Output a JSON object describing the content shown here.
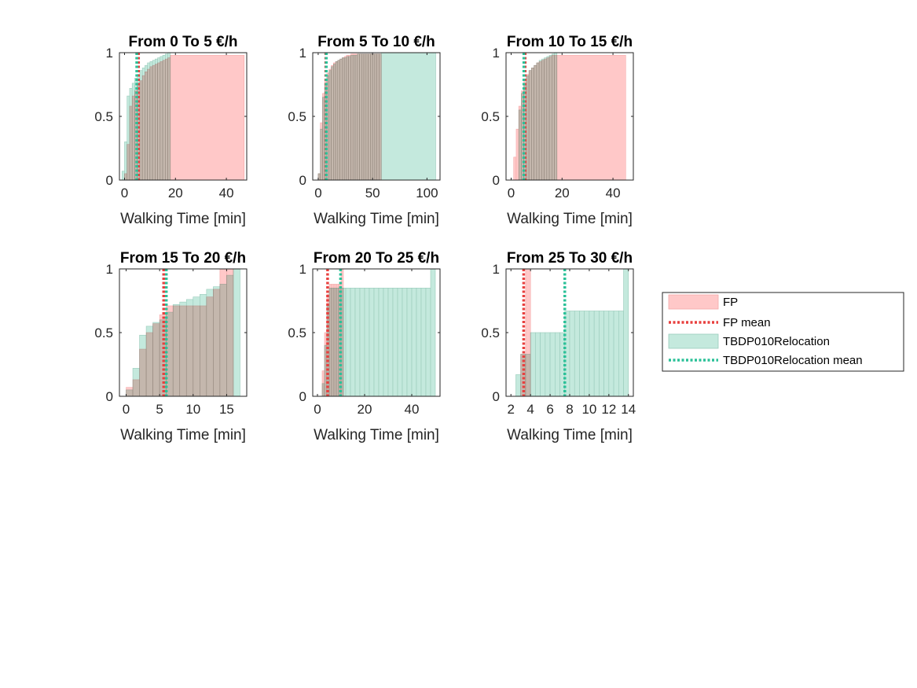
{
  "chart_data": [
    {
      "type": "bar",
      "title": "From 0 To 5 €/h",
      "xlabel": "Walking Time [min]",
      "ylabel": "",
      "xlim": [
        -2,
        48
      ],
      "ylim": [
        0,
        1
      ],
      "xticks": [
        "0",
        "20",
        "40"
      ],
      "xtick_values": [
        0,
        20,
        40
      ],
      "yticks": [
        "0",
        "0.5",
        "1"
      ],
      "ytick_values": [
        0,
        0.5,
        1
      ],
      "series": [
        {
          "name": "FP",
          "bin_edges": [
            0,
            1,
            2,
            3,
            4,
            5,
            6,
            7,
            8,
            9,
            10,
            11,
            12,
            13,
            14,
            15,
            16,
            17,
            18,
            47
          ],
          "values": [
            0.05,
            0.28,
            0.58,
            0.66,
            0.7,
            0.74,
            0.78,
            0.82,
            0.85,
            0.87,
            0.89,
            0.9,
            0.91,
            0.92,
            0.93,
            0.94,
            0.95,
            0.96,
            0.98
          ]
        },
        {
          "name": "TBDP010Relocation",
          "bin_edges": [
            -1,
            0,
            1,
            2,
            3,
            4,
            5,
            6,
            7,
            8,
            9,
            10,
            11,
            12,
            13,
            14,
            15,
            16,
            17,
            18
          ],
          "values": [
            0.07,
            0.3,
            0.66,
            0.72,
            0.76,
            0.8,
            0.83,
            0.86,
            0.88,
            0.9,
            0.92,
            0.93,
            0.94,
            0.95,
            0.96,
            0.97,
            0.98,
            0.99,
            1.0
          ]
        }
      ],
      "means": [
        {
          "name": "FP mean",
          "x": 5.5
        },
        {
          "name": "TBDP010Relocation mean",
          "x": 4.8
        }
      ]
    },
    {
      "type": "bar",
      "title": "From 5 To 10 €/h",
      "xlabel": "Walking Time [min]",
      "ylabel": "",
      "xlim": [
        -5,
        112
      ],
      "ylim": [
        0,
        1
      ],
      "xticks": [
        "0",
        "50",
        "100"
      ],
      "xtick_values": [
        0,
        50,
        100
      ],
      "yticks": [
        "0",
        "0.5",
        "1"
      ],
      "ytick_values": [
        0,
        0.5,
        1
      ],
      "series": [
        {
          "name": "FP",
          "bin_edges": [
            0,
            2,
            4,
            6,
            8,
            10,
            12,
            14,
            16,
            18,
            20,
            22,
            24,
            26,
            28,
            30,
            32,
            34,
            36,
            38,
            40,
            42,
            44,
            46,
            48,
            50,
            52,
            54,
            56,
            58
          ],
          "values": [
            0.05,
            0.45,
            0.68,
            0.78,
            0.84,
            0.87,
            0.9,
            0.92,
            0.93,
            0.94,
            0.95,
            0.96,
            0.97,
            0.98,
            0.98,
            0.99,
            0.99,
            0.99,
            0.99,
            0.99,
            0.99,
            0.99,
            0.99,
            0.99,
            0.99,
            0.99,
            0.99,
            0.99,
            0.99
          ]
        },
        {
          "name": "TBDP010Relocation",
          "bin_edges": [
            0,
            2,
            4,
            6,
            8,
            10,
            12,
            14,
            16,
            18,
            20,
            22,
            24,
            26,
            28,
            30,
            32,
            34,
            36,
            38,
            40,
            42,
            44,
            46,
            48,
            50,
            52,
            54,
            56,
            58,
            108
          ],
          "values": [
            0.05,
            0.4,
            0.65,
            0.76,
            0.82,
            0.86,
            0.89,
            0.91,
            0.93,
            0.94,
            0.95,
            0.96,
            0.96,
            0.97,
            0.97,
            0.98,
            0.98,
            0.98,
            0.99,
            0.99,
            0.99,
            0.99,
            0.99,
            0.99,
            0.99,
            0.99,
            0.99,
            0.99,
            0.99,
            1.0
          ]
        }
      ],
      "means": [
        {
          "name": "FP mean",
          "x": 7
        },
        {
          "name": "TBDP010Relocation mean",
          "x": 7.5
        }
      ]
    },
    {
      "type": "bar",
      "title": "From 10 To 15 €/h",
      "xlabel": "Walking Time [min]",
      "ylabel": "",
      "xlim": [
        -2,
        48
      ],
      "ylim": [
        0,
        1
      ],
      "xticks": [
        "0",
        "20",
        "40"
      ],
      "xtick_values": [
        0,
        20,
        40
      ],
      "yticks": [
        "0",
        "0.5",
        "1"
      ],
      "ytick_values": [
        0,
        0.5,
        1
      ],
      "series": [
        {
          "name": "FP",
          "bin_edges": [
            1,
            2,
            3,
            4,
            5,
            6,
            7,
            8,
            9,
            10,
            11,
            12,
            13,
            14,
            15,
            16,
            17,
            18,
            45
          ],
          "values": [
            0.18,
            0.4,
            0.58,
            0.7,
            0.78,
            0.83,
            0.86,
            0.88,
            0.9,
            0.92,
            0.93,
            0.94,
            0.95,
            0.96,
            0.97,
            0.98,
            0.98,
            0.98
          ]
        },
        {
          "name": "TBDP010Relocation",
          "bin_edges": [
            3,
            4,
            5,
            6,
            7,
            8,
            9,
            10,
            11,
            12,
            13,
            14,
            15,
            16,
            17,
            18
          ],
          "values": [
            0.55,
            0.68,
            0.76,
            0.82,
            0.86,
            0.88,
            0.9,
            0.92,
            0.94,
            0.95,
            0.96,
            0.97,
            0.98,
            0.99,
            1.0
          ]
        }
      ],
      "means": [
        {
          "name": "FP mean",
          "x": 5.5
        },
        {
          "name": "TBDP010Relocation mean",
          "x": 5.0
        }
      ]
    },
    {
      "type": "bar",
      "title": "From 15 To 20 €/h",
      "xlabel": "Walking Time [min]",
      "ylabel": "",
      "xlim": [
        -1,
        18
      ],
      "ylim": [
        0,
        1
      ],
      "xticks": [
        "0",
        "5",
        "10",
        "15"
      ],
      "xtick_values": [
        0,
        5,
        10,
        15
      ],
      "yticks": [
        "0",
        "0.5",
        "1"
      ],
      "ytick_values": [
        0,
        0.5,
        1
      ],
      "series": [
        {
          "name": "FP",
          "bin_edges": [
            0,
            1,
            2,
            3,
            4,
            5,
            6,
            7,
            8,
            9,
            10,
            11,
            12,
            13,
            14,
            15,
            16
          ],
          "values": [
            0.07,
            0.13,
            0.37,
            0.5,
            0.57,
            0.64,
            0.71,
            0.71,
            0.71,
            0.71,
            0.71,
            0.71,
            0.78,
            0.84,
            1.0,
            1.0
          ]
        },
        {
          "name": "TBDP010Relocation",
          "bin_edges": [
            0,
            1,
            2,
            3,
            4,
            5,
            6,
            7,
            8,
            9,
            10,
            11,
            12,
            13,
            14,
            15,
            16,
            17
          ],
          "values": [
            0.05,
            0.22,
            0.48,
            0.55,
            0.58,
            0.6,
            0.66,
            0.72,
            0.74,
            0.76,
            0.78,
            0.8,
            0.84,
            0.86,
            0.88,
            0.95,
            1.0
          ]
        }
      ],
      "means": [
        {
          "name": "FP mean",
          "x": 5.6
        },
        {
          "name": "TBDP010Relocation mean",
          "x": 6.0
        }
      ]
    },
    {
      "type": "bar",
      "title": "From 20 To 25 €/h",
      "xlabel": "Walking Time [min]",
      "ylabel": "",
      "xlim": [
        -2,
        52
      ],
      "ylim": [
        0,
        1
      ],
      "xticks": [
        "0",
        "20",
        "40"
      ],
      "xtick_values": [
        0,
        20,
        40
      ],
      "yticks": [
        "0",
        "0.5",
        "1"
      ],
      "ytick_values": [
        0,
        0.5,
        1
      ],
      "series": [
        {
          "name": "FP",
          "bin_edges": [
            2,
            3,
            4,
            5,
            6,
            7,
            8,
            9,
            10,
            11
          ],
          "values": [
            0.2,
            0.5,
            0.8,
            0.88,
            0.88,
            0.88,
            0.88,
            0.88,
            1.0
          ]
        },
        {
          "name": "TBDP010Relocation",
          "bin_edges": [
            2,
            3,
            4,
            5,
            6,
            7,
            8,
            9,
            10,
            11,
            12,
            14,
            16,
            18,
            20,
            22,
            24,
            26,
            28,
            30,
            32,
            34,
            36,
            38,
            40,
            42,
            44,
            46,
            48,
            50
          ],
          "values": [
            0.1,
            0.4,
            0.72,
            0.85,
            0.85,
            0.85,
            0.85,
            0.85,
            0.85,
            0.85,
            0.85,
            0.85,
            0.85,
            0.85,
            0.85,
            0.85,
            0.85,
            0.85,
            0.85,
            0.85,
            0.85,
            0.85,
            0.85,
            0.85,
            0.85,
            0.85,
            0.85,
            0.85,
            1.0
          ]
        }
      ],
      "means": [
        {
          "name": "FP mean",
          "x": 4.3
        },
        {
          "name": "TBDP010Relocation mean",
          "x": 9.8
        }
      ]
    },
    {
      "type": "bar",
      "title": "From 25 To 30 €/h",
      "xlabel": "Walking Time [min]",
      "ylabel": "",
      "xlim": [
        1.5,
        14.5
      ],
      "ylim": [
        0,
        1
      ],
      "xticks": [
        "2",
        "4",
        "6",
        "8",
        "10",
        "12",
        "14"
      ],
      "xtick_values": [
        2,
        4,
        6,
        8,
        10,
        12,
        14
      ],
      "yticks": [
        "0",
        "0.5",
        "1"
      ],
      "ytick_values": [
        0,
        0.5,
        1
      ],
      "series": [
        {
          "name": "FP",
          "bin_edges": [
            3,
            3.5,
            4
          ],
          "values": [
            0.33,
            1.0
          ]
        },
        {
          "name": "TBDP010Relocation",
          "bin_edges": [
            2.5,
            3,
            3.5,
            4,
            4.5,
            5,
            5.5,
            6,
            6.5,
            7,
            7.5,
            8,
            8.5,
            9,
            9.5,
            10,
            10.5,
            11,
            11.5,
            12,
            12.5,
            13,
            13.5,
            14
          ],
          "values": [
            0.17,
            0.33,
            0.33,
            0.5,
            0.5,
            0.5,
            0.5,
            0.5,
            0.5,
            0.5,
            0.67,
            0.67,
            0.67,
            0.67,
            0.67,
            0.67,
            0.67,
            0.67,
            0.67,
            0.67,
            0.67,
            0.67,
            1.0
          ]
        }
      ],
      "means": [
        {
          "name": "FP mean",
          "x": 3.3
        },
        {
          "name": "TBDP010Relocation mean",
          "x": 7.5
        }
      ]
    }
  ],
  "legend": {
    "placement": "right",
    "entries": [
      {
        "label": "FP",
        "kind": "patch",
        "color": "#ffc8c8"
      },
      {
        "label": "FP mean",
        "kind": "dotted-line",
        "color": "#e8403f"
      },
      {
        "label": "TBDP010Relocation",
        "kind": "patch",
        "color": "#c4e9dd"
      },
      {
        "label": "TBDP010Relocation mean",
        "kind": "dotted-line",
        "color": "#2bc198"
      }
    ]
  },
  "colors": {
    "fp_fill": "#ffc8c8",
    "fp_edge": "#f4a9a9",
    "tbdp_fill": "#c4e9dd",
    "tbdp_edge": "#99cbbb",
    "overlap_fill": "#b4aba4",
    "fp_mean": "#e8403f",
    "tbdp_mean": "#2bc198",
    "axis": "#262626"
  }
}
